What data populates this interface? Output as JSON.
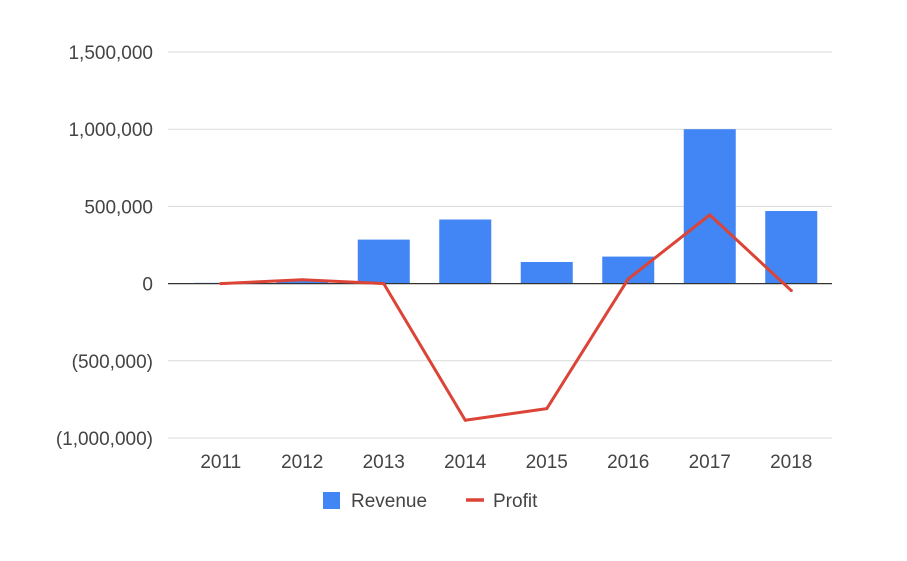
{
  "chart_data": {
    "type": "bar",
    "categories": [
      "2011",
      "2012",
      "2013",
      "2014",
      "2015",
      "2016",
      "2017",
      "2018"
    ],
    "series": [
      {
        "name": "Revenue",
        "type": "bar",
        "color": "#4285f4",
        "values": [
          5000,
          20000,
          285000,
          415000,
          140000,
          175000,
          1000000,
          470000
        ]
      },
      {
        "name": "Profit",
        "type": "line",
        "color": "#db4437",
        "values": [
          0,
          25000,
          0,
          -885000,
          -810000,
          30000,
          445000,
          -45000
        ]
      }
    ],
    "ylim": [
      -1000000,
      1500000
    ],
    "yticks": [
      1500000,
      1000000,
      500000,
      0,
      -500000,
      -1000000
    ],
    "ytick_labels": [
      "1,500,000",
      "1,000,000",
      "500,000",
      "0",
      "(500,000)",
      "(1,000,000)"
    ],
    "grid": true,
    "legend_position": "bottom",
    "title": "",
    "xlabel": "",
    "ylabel": ""
  }
}
